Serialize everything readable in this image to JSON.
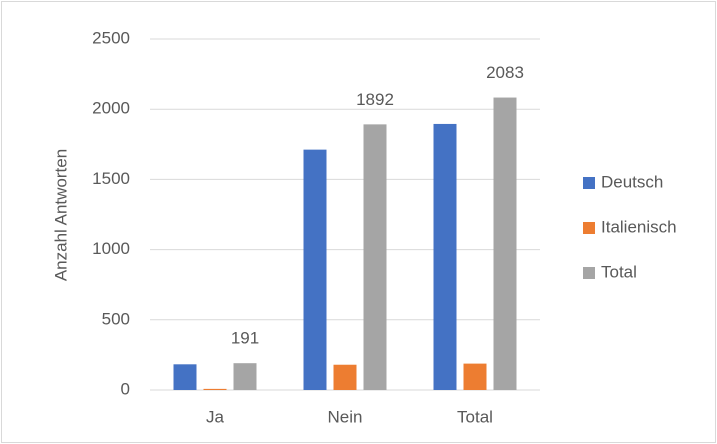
{
  "chart_data": {
    "type": "bar",
    "y_label": "Anzahl Antworten",
    "categories": [
      "Ja",
      "Nein",
      "Total"
    ],
    "series": [
      {
        "name": "Deutsch",
        "color": "#4472c4",
        "values": [
          183,
          1712,
          1895
        ]
      },
      {
        "name": "Italienisch",
        "color": "#ed7d31",
        "values": [
          8,
          180,
          188
        ]
      },
      {
        "name": "Total",
        "color": "#a5a5a5",
        "values": [
          191,
          1892,
          2083
        ],
        "data_labels": true
      }
    ],
    "ylim": [
      0,
      2500
    ],
    "yticks": [
      0,
      500,
      1000,
      1500,
      2000,
      2500
    ],
    "grid": true,
    "legend": "right"
  }
}
